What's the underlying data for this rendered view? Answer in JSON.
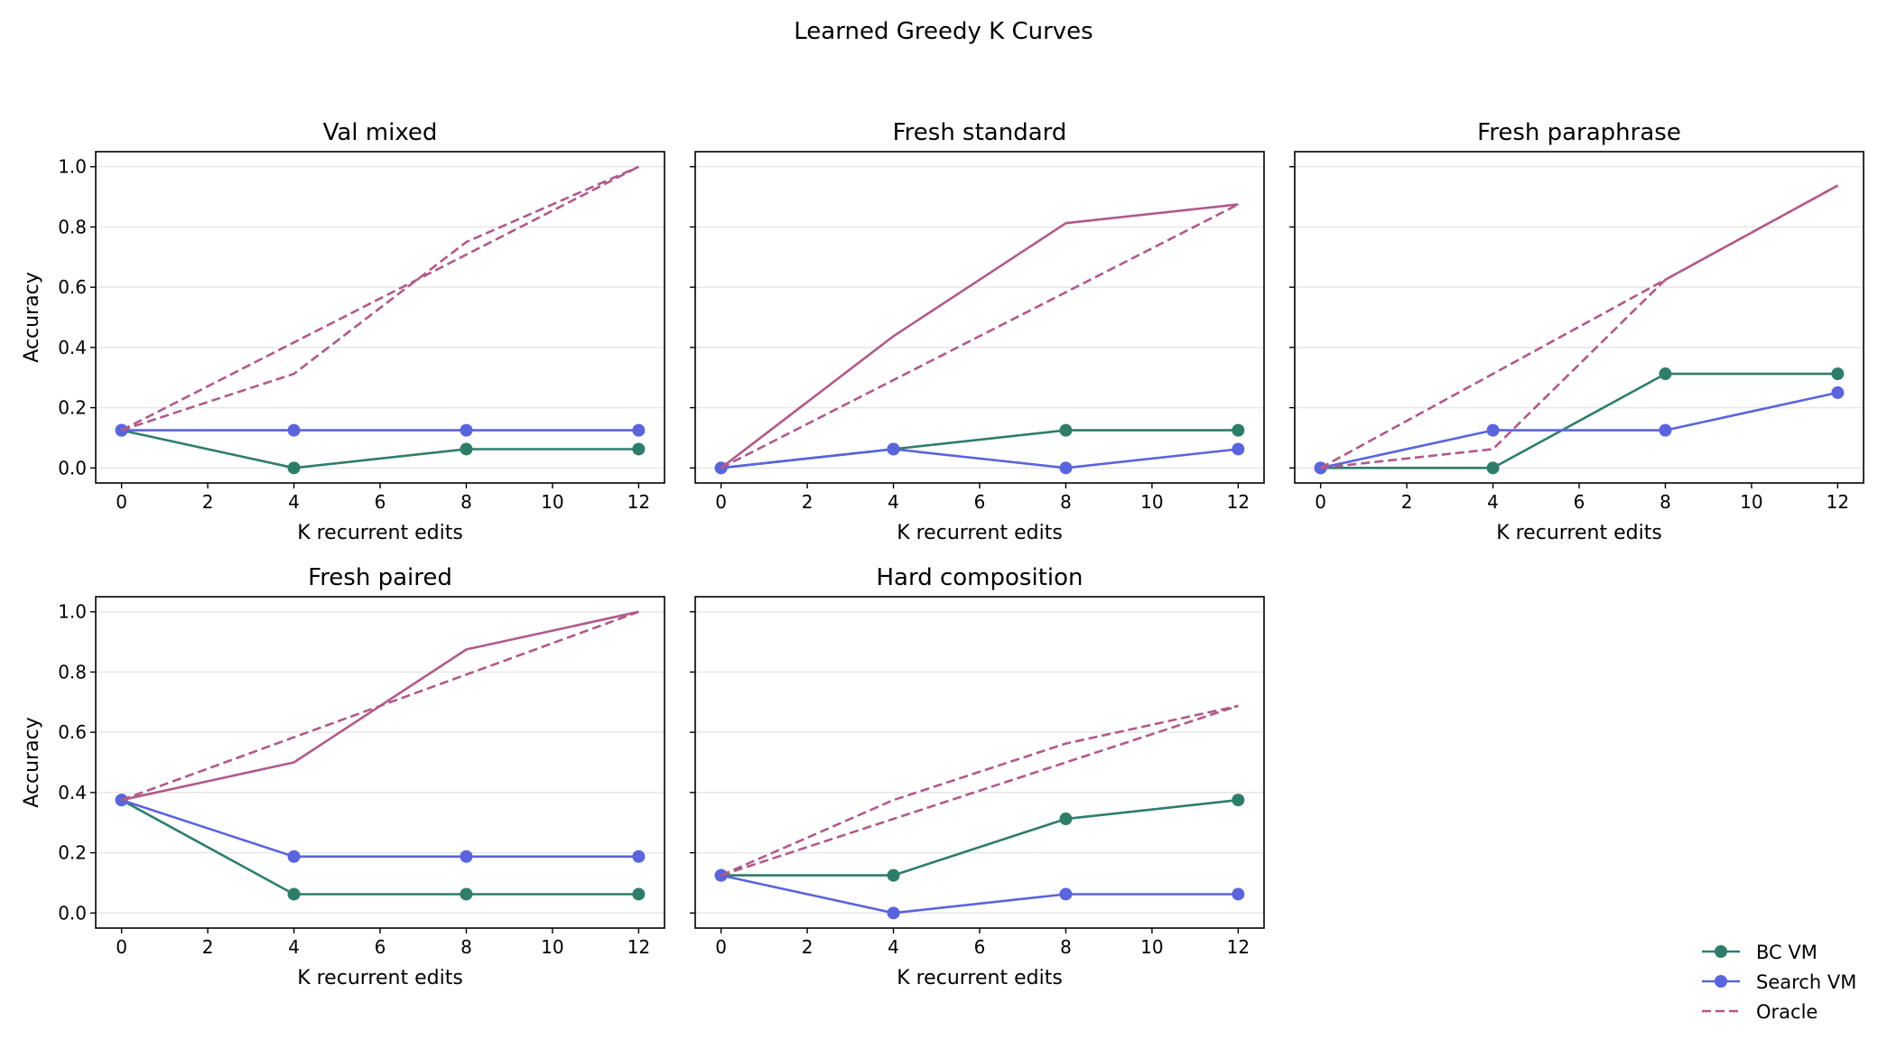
{
  "chart_data": {
    "type": "line",
    "title": "Learned Greedy K Curves",
    "xlabel": "K recurrent edits",
    "ylabel": "Accuracy",
    "xlim": [
      -0.6,
      12.6
    ],
    "ylim": [
      -0.05,
      1.05
    ],
    "xticks": [
      "0",
      "2",
      "4",
      "6",
      "8",
      "10",
      "12"
    ],
    "yticks": [
      "0.0",
      "0.2",
      "0.4",
      "0.6",
      "0.8",
      "1.0"
    ],
    "grid": "y-only",
    "legend": {
      "placement": "bottom-right",
      "entries": [
        {
          "name": "BC VM",
          "color": "#2e7d6b",
          "style": "solid-marker"
        },
        {
          "name": "Search VM",
          "color": "#5a64dc",
          "style": "solid-marker"
        },
        {
          "name": "Oracle",
          "color": "#b05a8a",
          "style": "dashed"
        }
      ]
    },
    "panels": [
      {
        "title": "Val mixed",
        "x": [
          0,
          4,
          8,
          12
        ],
        "series": [
          {
            "name": "BC VM",
            "values": [
              0.125,
              0.0,
              0.0625,
              0.0625
            ]
          },
          {
            "name": "Search VM",
            "values": [
              0.125,
              0.125,
              0.125,
              0.125
            ]
          },
          {
            "style": "dashed",
            "values": [
              0.125,
              0.3125,
              0.75,
              1.0
            ]
          },
          {
            "style": "dashed",
            "values": [
              0.125,
              0.4167,
              0.7083,
              1.0
            ]
          }
        ]
      },
      {
        "title": "Fresh standard",
        "x": [
          0,
          4,
          8,
          12
        ],
        "series": [
          {
            "name": "BC VM",
            "values": [
              0.0,
              0.0625,
              0.125,
              0.125
            ]
          },
          {
            "name": "Search VM",
            "values": [
              0.0,
              0.0625,
              0.0,
              0.0625
            ]
          },
          {
            "style": "solid",
            "values": [
              0.0,
              0.4375,
              0.8125,
              0.875
            ]
          },
          {
            "style": "dashed",
            "values": [
              0.0,
              0.2917,
              0.5833,
              0.875
            ]
          }
        ]
      },
      {
        "title": "Fresh paraphrase",
        "x": [
          0,
          4,
          8,
          12
        ],
        "series": [
          {
            "name": "BC VM",
            "values": [
              0.0,
              0.0,
              0.3125,
              0.3125
            ]
          },
          {
            "name": "Search VM",
            "values": [
              0.0,
              0.125,
              0.125,
              0.25
            ]
          },
          {
            "style": "dashed",
            "values": [
              0.0,
              0.0625,
              0.625,
              0.9375
            ]
          },
          {
            "style": "dashed",
            "values": [
              0.0,
              0.3125,
              0.625,
              0.9375
            ]
          }
        ]
      },
      {
        "title": "Fresh paired",
        "x": [
          0,
          4,
          8,
          12
        ],
        "series": [
          {
            "name": "BC VM",
            "values": [
              0.375,
              0.0625,
              0.0625,
              0.0625
            ]
          },
          {
            "name": "Search VM",
            "values": [
              0.375,
              0.1875,
              0.1875,
              0.1875
            ]
          },
          {
            "style": "solid",
            "values": [
              0.375,
              0.5,
              0.875,
              1.0
            ]
          },
          {
            "style": "dashed",
            "values": [
              0.375,
              0.5833,
              0.7917,
              1.0
            ]
          }
        ]
      },
      {
        "title": "Hard composition",
        "x": [
          0,
          4,
          8,
          12
        ],
        "series": [
          {
            "name": "BC VM",
            "values": [
              0.125,
              0.125,
              0.3125,
              0.375
            ]
          },
          {
            "name": "Search VM",
            "values": [
              0.125,
              0.0,
              0.0625,
              0.0625
            ]
          },
          {
            "style": "dashed",
            "values": [
              0.125,
              0.375,
              0.5625,
              0.6875
            ]
          },
          {
            "style": "dashed",
            "values": [
              0.125,
              0.3125,
              0.5,
              0.6875
            ]
          }
        ]
      }
    ]
  }
}
